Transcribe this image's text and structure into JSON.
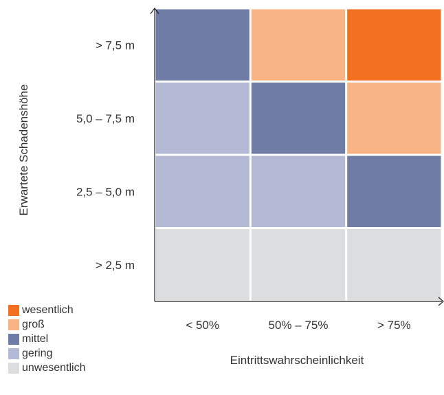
{
  "chart_data": {
    "type": "heatmap",
    "title": "",
    "xlabel": "Eintrittswahrscheinlichkeit",
    "ylabel": "Erwartete Schadenshöhe",
    "x_categories": [
      "< 50%",
      "50% – 75%",
      "> 75%"
    ],
    "y_categories": [
      "> 2,5 m",
      "2,5 – 5,0 m",
      "5,0 – 7,5 m",
      "> 7,5 m"
    ],
    "cells": [
      [
        "unwesentlich",
        "unwesentlich",
        "unwesentlich"
      ],
      [
        "gering",
        "gering",
        "mittel"
      ],
      [
        "gering",
        "mittel",
        "groß"
      ],
      [
        "mittel",
        "groß",
        "wesentlich"
      ]
    ],
    "legend": [
      {
        "level": "wesentlich",
        "label": "wesentlich",
        "color": "#f37021"
      },
      {
        "level": "groß",
        "label": "groß",
        "color": "#f9b485"
      },
      {
        "level": "mittel",
        "label": "mittel",
        "color": "#6f7ca6"
      },
      {
        "level": "gering",
        "label": "gering",
        "color": "#b4b9d5"
      },
      {
        "level": "unwesentlich",
        "label": "unwesentlich",
        "color": "#dcdddf"
      }
    ],
    "legend_position": "bottom-left",
    "grid": true
  }
}
